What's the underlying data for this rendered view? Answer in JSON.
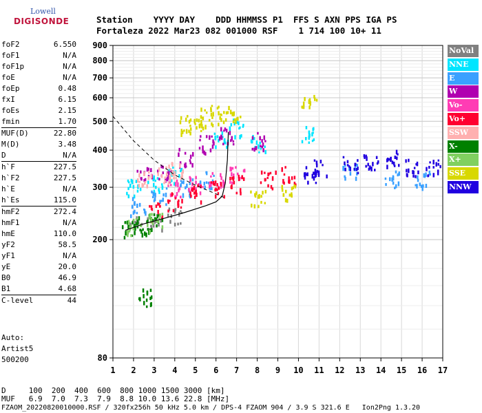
{
  "logo": {
    "top": "Lowell",
    "bottom": "DIGISONDE"
  },
  "header": {
    "labels": "Station    YYYY DAY    DDD HHMMSS P1  FFS S AXN PPS IGA PS",
    "values": "Fortaleza 2022 Mar23 082 001000 RSF    1 714 100 10+ 11"
  },
  "params": [
    {
      "k": "foF2",
      "v": "6.550"
    },
    {
      "k": "foF1",
      "v": "N/A"
    },
    {
      "k": "foF1p",
      "v": "N/A"
    },
    {
      "k": "foE",
      "v": "N/A"
    },
    {
      "k": "foEp",
      "v": "0.48"
    },
    {
      "k": "fxI",
      "v": "6.15"
    },
    {
      "k": "foEs",
      "v": "2.15"
    },
    {
      "k": "fmin",
      "v": "1.70"
    },
    {
      "k": "MUF(D)",
      "v": "22.80"
    },
    {
      "k": "M(D)",
      "v": "3.48"
    },
    {
      "k": "D",
      "v": "N/A"
    },
    {
      "k": "h`F",
      "v": "227.5"
    },
    {
      "k": "h`F2",
      "v": "227.5"
    },
    {
      "k": "h`E",
      "v": "N/A"
    },
    {
      "k": "h`Es",
      "v": "115.0"
    },
    {
      "k": "hmF2",
      "v": "272.4"
    },
    {
      "k": "hmF1",
      "v": "N/A"
    },
    {
      "k": "hmE",
      "v": "110.0"
    },
    {
      "k": "yF2",
      "v": "58.5"
    },
    {
      "k": "yF1",
      "v": "N/A"
    },
    {
      "k": "yE",
      "v": "20.0"
    },
    {
      "k": "B0",
      "v": "46.9"
    },
    {
      "k": "B1",
      "v": "4.68"
    },
    {
      "k": "C-level",
      "v": "44"
    }
  ],
  "auto": {
    "line1": "Auto:",
    "line2": "Artist5",
    "line3": "500200"
  },
  "legend": [
    {
      "name": "NoVal",
      "color": "#808080"
    },
    {
      "name": "NNE",
      "color": "#00e5ff"
    },
    {
      "name": "E",
      "color": "#3aa0ff"
    },
    {
      "name": "W",
      "color": "#b000b0"
    },
    {
      "name": "Vo-",
      "color": "#ff3cb4"
    },
    {
      "name": "Vo+",
      "color": "#ff0030"
    },
    {
      "name": "SSW",
      "color": "#ffb0b0"
    },
    {
      "name": "X-",
      "color": "#008000"
    },
    {
      "name": "X+",
      "color": "#80d060"
    },
    {
      "name": "SSE",
      "color": "#d8d800"
    },
    {
      "name": "NNW",
      "color": "#2000e0"
    }
  ],
  "bottom": {
    "d_line": "D     100  200  400  600  800 1000 1500 3000 [km]",
    "muf_line": "MUF   6.9  7.0  7.3  7.9  8.8 10.0 13.6 22.8 [MHz]",
    "file_line": "FZAOM_20220820010000.RSF / 320fx256h 50 kHz 5.0 km / DPS-4 FZAOM 904 / 3.9 S 321.6 E   Ion2Png 1.3.20"
  },
  "chart_data": {
    "type": "scatter",
    "title": "",
    "xlabel": "",
    "ylabel": "",
    "xlim": [
      1,
      17
    ],
    "ylim": [
      80,
      900
    ],
    "x_ticks": [
      1,
      2,
      3,
      4,
      5,
      6,
      7,
      8,
      9,
      10,
      11,
      12,
      13,
      14,
      15,
      16,
      17
    ],
    "y_ticks": [
      80,
      200,
      300,
      400,
      500,
      600,
      700,
      800,
      900
    ],
    "y_scale": "log",
    "grid": true,
    "series": [
      {
        "name": "NoVal",
        "points": [
          [
            2.0,
            226
          ],
          [
            3.0,
            232
          ],
          [
            4.0,
            240
          ]
        ]
      },
      {
        "name": "NNE",
        "points": [
          [
            2.0,
            300
          ],
          [
            3.0,
            310
          ],
          [
            4.0,
            330
          ],
          [
            6.2,
            440
          ],
          [
            7.0,
            480
          ],
          [
            8.0,
            420
          ],
          [
            10.5,
            450
          ]
        ]
      },
      {
        "name": "E",
        "points": [
          [
            2.2,
            260
          ],
          [
            3.2,
            280
          ],
          [
            4.5,
            300
          ],
          [
            5.5,
            320
          ],
          [
            12.5,
            340
          ],
          [
            14.5,
            320
          ],
          [
            16.0,
            320
          ]
        ]
      },
      {
        "name": "W",
        "points": [
          [
            2.5,
            330
          ],
          [
            3.5,
            340
          ],
          [
            4.5,
            380
          ],
          [
            5.5,
            420
          ],
          [
            6.5,
            450
          ],
          [
            8.0,
            430
          ]
        ]
      },
      {
        "name": "Vo-",
        "points": [
          [
            4.0,
            300
          ],
          [
            5.0,
            310
          ],
          [
            6.0,
            320
          ],
          [
            7.0,
            330
          ]
        ]
      },
      {
        "name": "Vo+",
        "points": [
          [
            3.0,
            250
          ],
          [
            4.0,
            270
          ],
          [
            5.0,
            290
          ],
          [
            6.0,
            300
          ],
          [
            7.0,
            310
          ],
          [
            8.5,
            320
          ],
          [
            9.5,
            330
          ]
        ]
      },
      {
        "name": "SSW",
        "points": [
          [
            2.5,
            320
          ],
          [
            3.5,
            330
          ],
          [
            4.0,
            345
          ]
        ]
      },
      {
        "name": "X-",
        "points": [
          [
            1.8,
            218
          ],
          [
            2.5,
            224
          ],
          [
            3.0,
            229
          ],
          [
            2.6,
            128
          ]
        ]
      },
      {
        "name": "X+",
        "points": [
          [
            2.0,
            222
          ],
          [
            3.0,
            230
          ]
        ]
      },
      {
        "name": "SSE",
        "points": [
          [
            4.5,
            490
          ],
          [
            5.0,
            500
          ],
          [
            5.5,
            520
          ],
          [
            6.0,
            530
          ],
          [
            6.8,
            540
          ],
          [
            8.0,
            280
          ],
          [
            9.5,
            290
          ],
          [
            10.5,
            600
          ]
        ]
      },
      {
        "name": "NNW",
        "points": [
          [
            12.5,
            360
          ],
          [
            13.5,
            370
          ],
          [
            14.5,
            380
          ],
          [
            15.5,
            350
          ],
          [
            16.5,
            350
          ],
          [
            10.6,
            330
          ],
          [
            11.0,
            350
          ]
        ]
      }
    ],
    "fitted_trace": [
      [
        1.6,
        215
      ],
      [
        2.5,
        226
      ],
      [
        3.5,
        236
      ],
      [
        4.5,
        247
      ],
      [
        5.5,
        260
      ],
      [
        6.0,
        268
      ],
      [
        6.3,
        280
      ],
      [
        6.45,
        310
      ],
      [
        6.55,
        370
      ],
      [
        6.6,
        460
      ]
    ],
    "dashed_trace": [
      [
        1.0,
        520
      ],
      [
        2.0,
        430
      ],
      [
        3.0,
        370
      ],
      [
        4.0,
        330
      ],
      [
        5.0,
        305
      ],
      [
        6.0,
        285
      ],
      [
        6.5,
        275
      ]
    ]
  }
}
